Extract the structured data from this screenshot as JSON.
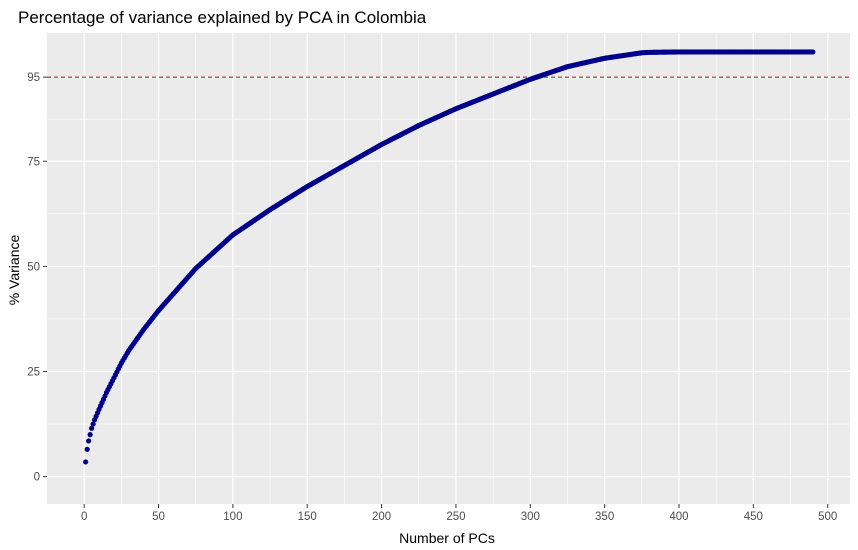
{
  "chart_data": {
    "type": "scatter",
    "title": "Percentage of variance explained by PCA in Colombia",
    "xlabel": "Number of PCs",
    "ylabel": "% Variance",
    "xlim": [
      -25,
      515
    ],
    "ylim": [
      -6.5,
      105.5
    ],
    "x_ticks": [
      0,
      50,
      100,
      150,
      200,
      250,
      300,
      350,
      400,
      450,
      500
    ],
    "y_ticks": [
      0,
      25,
      50,
      75,
      95
    ],
    "grid": true,
    "legend": "none",
    "threshold_line": {
      "y": 95,
      "color": "#8b1a1a",
      "style": "dashed"
    },
    "point_color": "#00008b",
    "panel_color": "#ebebeb",
    "series": [
      {
        "x": [
          1,
          2,
          3,
          5,
          7,
          10,
          15,
          20,
          25,
          30,
          40,
          50,
          60,
          75,
          100,
          125,
          150,
          175,
          200,
          225,
          250,
          275,
          300,
          325,
          350,
          375,
          380,
          400,
          490
        ],
        "y": [
          3.5,
          6.5,
          8.5,
          11.5,
          13.5,
          16,
          20,
          23.5,
          27,
          30,
          35,
          39.5,
          43.5,
          49.5,
          57.5,
          63.5,
          69,
          74,
          79,
          83.5,
          87.5,
          91,
          94.5,
          97.5,
          99.5,
          100.8,
          100.9,
          101,
          101
        ]
      }
    ]
  }
}
